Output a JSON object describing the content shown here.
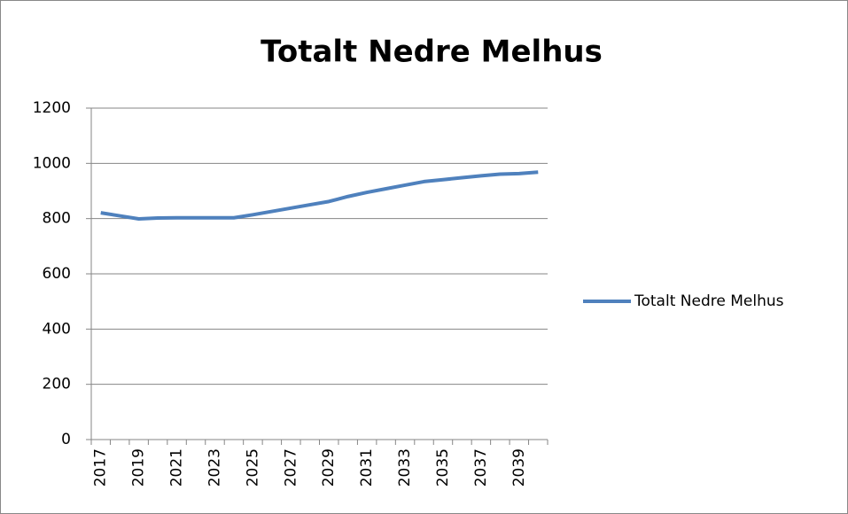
{
  "chart_data": {
    "type": "line",
    "title": "Totalt Nedre Melhus",
    "categories": [
      "2017",
      null,
      "2019",
      null,
      "2021",
      null,
      "2023",
      null,
      "2025",
      null,
      "2027",
      null,
      "2029",
      null,
      "2031",
      null,
      "2033",
      null,
      "2035",
      null,
      "2037",
      null,
      "2039",
      null
    ],
    "series": [
      {
        "name": "Totalt Nedre Melhus",
        "color": "#4f81bd",
        "values": [
          821,
          810,
          799,
          802,
          803,
          803,
          803,
          803,
          814,
          826,
          838,
          850,
          862,
          880,
          895,
          908,
          921,
          934,
          941,
          948,
          955,
          961,
          963,
          968
        ]
      }
    ],
    "ylim": [
      0,
      1200
    ],
    "yticks": [
      0,
      200,
      400,
      600,
      800,
      1000,
      1200
    ],
    "grid": true,
    "legend": "right"
  }
}
